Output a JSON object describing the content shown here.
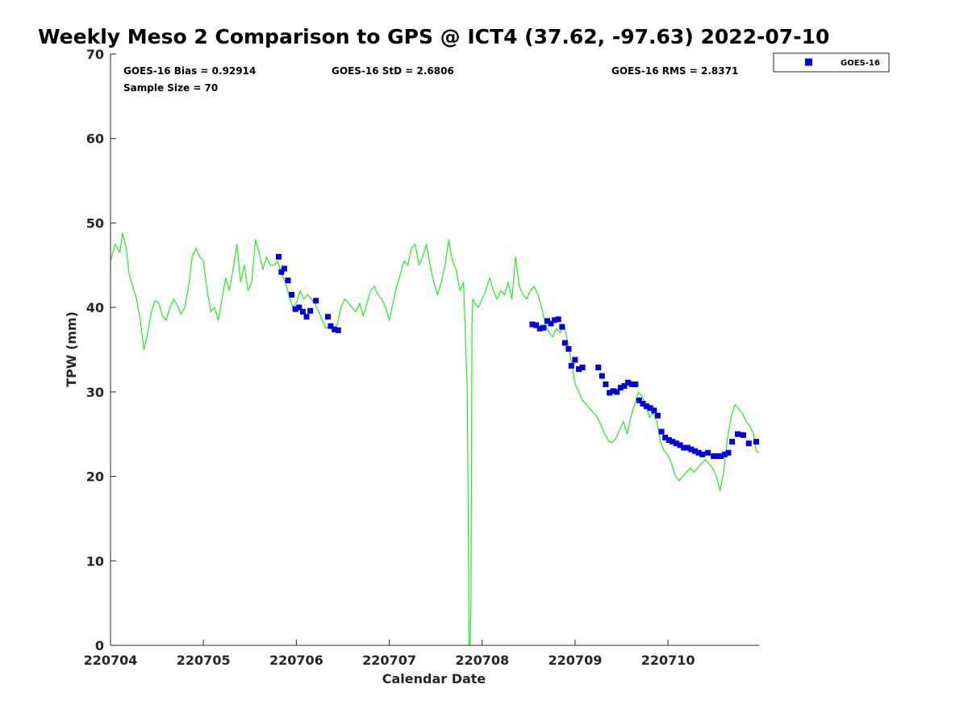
{
  "chart_data": {
    "type": "scatter",
    "title": "Weekly Meso 2 Comparison to GPS @ ICT4 (37.62, -97.63) 2022-07-10",
    "xlabel": "Calendar Date",
    "ylabel": "TPW (mm)",
    "x_unit": "day offset from 220704 (tick spacing 1 day)",
    "xlim": [
      0,
      6.98
    ],
    "ylim": [
      0,
      70
    ],
    "x_ticks": [
      0,
      1,
      2,
      3,
      4,
      5,
      6
    ],
    "x_tick_labels": [
      "220704",
      "220705",
      "220706",
      "220707",
      "220708",
      "220709",
      "220710"
    ],
    "y_ticks": [
      0,
      10,
      20,
      30,
      40,
      50,
      60,
      70
    ],
    "y_tick_labels": [
      "0",
      "10",
      "20",
      "30",
      "40",
      "50",
      "60",
      "70"
    ],
    "grid": false,
    "legend_position": "outside-top-right",
    "stats": {
      "bias": "GOES-16 Bias = 0.92914",
      "std": "GOES-16 StD = 2.6806",
      "rms": "GOES-16 RMS = 2.8371",
      "sample": "Sample Size = 70"
    },
    "series": [
      {
        "name": "GOES-16",
        "kind": "scatter",
        "color": "#0000dd",
        "marker": "square",
        "x": [
          1.81,
          1.84,
          1.87,
          1.91,
          1.95,
          1.99,
          2.03,
          2.07,
          2.11,
          2.15,
          2.21,
          2.34,
          2.37,
          2.41,
          2.45,
          4.54,
          4.58,
          4.62,
          4.66,
          4.7,
          4.74,
          4.78,
          4.82,
          4.86,
          4.89,
          4.93,
          4.96,
          5.0,
          5.04,
          5.08,
          5.25,
          5.29,
          5.33,
          5.37,
          5.41,
          5.45,
          5.49,
          5.53,
          5.57,
          5.61,
          5.65,
          5.69,
          5.73,
          5.77,
          5.81,
          5.85,
          5.89,
          5.93,
          5.97,
          6.01,
          6.05,
          6.09,
          6.13,
          6.17,
          6.21,
          6.25,
          6.29,
          6.33,
          6.37,
          6.43,
          6.49,
          6.53,
          6.57,
          6.61,
          6.65,
          6.69,
          6.75,
          6.81,
          6.87,
          6.95
        ],
        "y": [
          46.0,
          44.2,
          44.6,
          43.2,
          41.5,
          39.8,
          40.0,
          39.5,
          38.9,
          39.6,
          40.8,
          38.9,
          37.8,
          37.4,
          37.3,
          38.0,
          37.9,
          37.5,
          37.6,
          38.4,
          38.1,
          38.5,
          38.6,
          37.7,
          35.8,
          35.1,
          33.1,
          33.8,
          32.7,
          32.9,
          32.9,
          31.9,
          30.9,
          29.9,
          30.1,
          30.0,
          30.5,
          30.7,
          31.1,
          30.9,
          30.9,
          29.0,
          28.6,
          28.3,
          28.1,
          27.8,
          27.2,
          25.3,
          24.6,
          24.3,
          24.1,
          23.9,
          23.7,
          23.4,
          23.4,
          23.2,
          23.0,
          22.8,
          22.6,
          22.8,
          22.4,
          22.4,
          22.4,
          22.6,
          22.8,
          24.1,
          25.0,
          24.9,
          23.9,
          24.1
        ]
      },
      {
        "name": "",
        "kind": "line",
        "color": "#22ee22",
        "x": [
          0.0,
          0.05,
          0.1,
          0.13,
          0.17,
          0.2,
          0.24,
          0.28,
          0.32,
          0.36,
          0.4,
          0.44,
          0.48,
          0.52,
          0.56,
          0.6,
          0.64,
          0.68,
          0.72,
          0.76,
          0.8,
          0.84,
          0.88,
          0.92,
          0.96,
          1.0,
          1.04,
          1.08,
          1.12,
          1.16,
          1.2,
          1.24,
          1.28,
          1.32,
          1.36,
          1.4,
          1.44,
          1.48,
          1.52,
          1.56,
          1.6,
          1.64,
          1.68,
          1.72,
          1.76,
          1.8,
          1.84,
          1.88,
          1.92,
          1.96,
          2.0,
          2.04,
          2.08,
          2.12,
          2.16,
          2.2,
          2.24,
          2.28,
          2.32,
          2.36,
          2.4,
          2.44,
          2.48,
          2.52,
          2.56,
          2.6,
          2.64,
          2.68,
          2.72,
          2.76,
          2.8,
          2.84,
          2.88,
          2.92,
          2.96,
          3.0,
          3.04,
          3.08,
          3.12,
          3.16,
          3.2,
          3.24,
          3.28,
          3.32,
          3.36,
          3.4,
          3.44,
          3.48,
          3.52,
          3.56,
          3.6,
          3.64,
          3.68,
          3.72,
          3.76,
          3.8,
          3.84,
          3.86,
          3.87,
          3.88,
          3.89,
          3.9,
          3.92,
          3.96,
          4.0,
          4.04,
          4.08,
          4.12,
          4.16,
          4.2,
          4.24,
          4.28,
          4.32,
          4.36,
          4.4,
          4.44,
          4.48,
          4.52,
          4.56,
          4.6,
          4.64,
          4.68,
          4.72,
          4.76,
          4.8,
          4.84,
          4.88,
          4.92,
          4.96,
          5.0,
          5.04,
          5.08,
          5.12,
          5.16,
          5.2,
          5.24,
          5.28,
          5.32,
          5.36,
          5.4,
          5.44,
          5.48,
          5.52,
          5.56,
          5.6,
          5.64,
          5.68,
          5.72,
          5.76,
          5.8,
          5.84,
          5.88,
          5.92,
          5.96,
          6.0,
          6.04,
          6.08,
          6.12,
          6.16,
          6.2,
          6.24,
          6.28,
          6.32,
          6.36,
          6.4,
          6.44,
          6.48,
          6.52,
          6.56,
          6.6,
          6.64,
          6.68,
          6.72,
          6.76,
          6.8,
          6.84,
          6.88,
          6.92,
          6.95,
          6.98
        ],
        "y": [
          45.5,
          47.5,
          46.5,
          48.8,
          47.0,
          44.0,
          42.5,
          41.0,
          38.5,
          35.0,
          37.0,
          39.5,
          40.8,
          40.5,
          39.0,
          38.5,
          40.0,
          41.0,
          40.2,
          39.2,
          40.0,
          42.5,
          46.0,
          47.0,
          46.0,
          45.5,
          42.0,
          39.5,
          40.0,
          38.5,
          41.0,
          43.5,
          42.0,
          44.5,
          47.5,
          43.0,
          45.0,
          42.0,
          43.0,
          48.0,
          46.5,
          44.5,
          46.0,
          45.0,
          45.0,
          45.5,
          44.0,
          43.0,
          41.5,
          40.0,
          40.5,
          42.0,
          41.0,
          41.5,
          41.0,
          40.5,
          39.5,
          38.5,
          37.5,
          38.0,
          37.5,
          38.0,
          40.0,
          41.0,
          40.5,
          40.0,
          39.5,
          40.5,
          39.0,
          40.5,
          42.0,
          42.5,
          41.5,
          41.0,
          40.0,
          38.5,
          40.5,
          42.5,
          44.0,
          45.5,
          45.0,
          47.0,
          47.5,
          45.0,
          46.0,
          47.5,
          45.0,
          43.0,
          41.5,
          43.0,
          45.0,
          48.0,
          45.5,
          44.5,
          42.0,
          43.0,
          30.0,
          0.0,
          0.0,
          5.0,
          38.0,
          41.0,
          40.5,
          40.0,
          41.0,
          42.0,
          43.5,
          42.0,
          41.0,
          42.0,
          41.5,
          43.0,
          41.0,
          46.0,
          42.5,
          41.5,
          41.0,
          42.0,
          42.5,
          41.5,
          40.0,
          38.0,
          37.0,
          36.5,
          37.5,
          37.0,
          38.0,
          36.0,
          33.5,
          31.0,
          30.0,
          29.0,
          28.5,
          28.0,
          27.5,
          27.0,
          26.0,
          25.0,
          24.2,
          24.0,
          24.5,
          25.5,
          26.5,
          25.0,
          27.0,
          28.5,
          30.0,
          29.5,
          28.5,
          27.0,
          27.5,
          26.5,
          24.0,
          23.0,
          22.5,
          21.5,
          20.0,
          19.5,
          20.0,
          20.5,
          21.0,
          20.5,
          21.0,
          21.5,
          22.0,
          21.5,
          21.0,
          20.0,
          18.3,
          20.5,
          24.5,
          27.0,
          28.5,
          28.0,
          27.5,
          26.5,
          26.0,
          25.0,
          23.0,
          22.8
        ]
      }
    ]
  }
}
